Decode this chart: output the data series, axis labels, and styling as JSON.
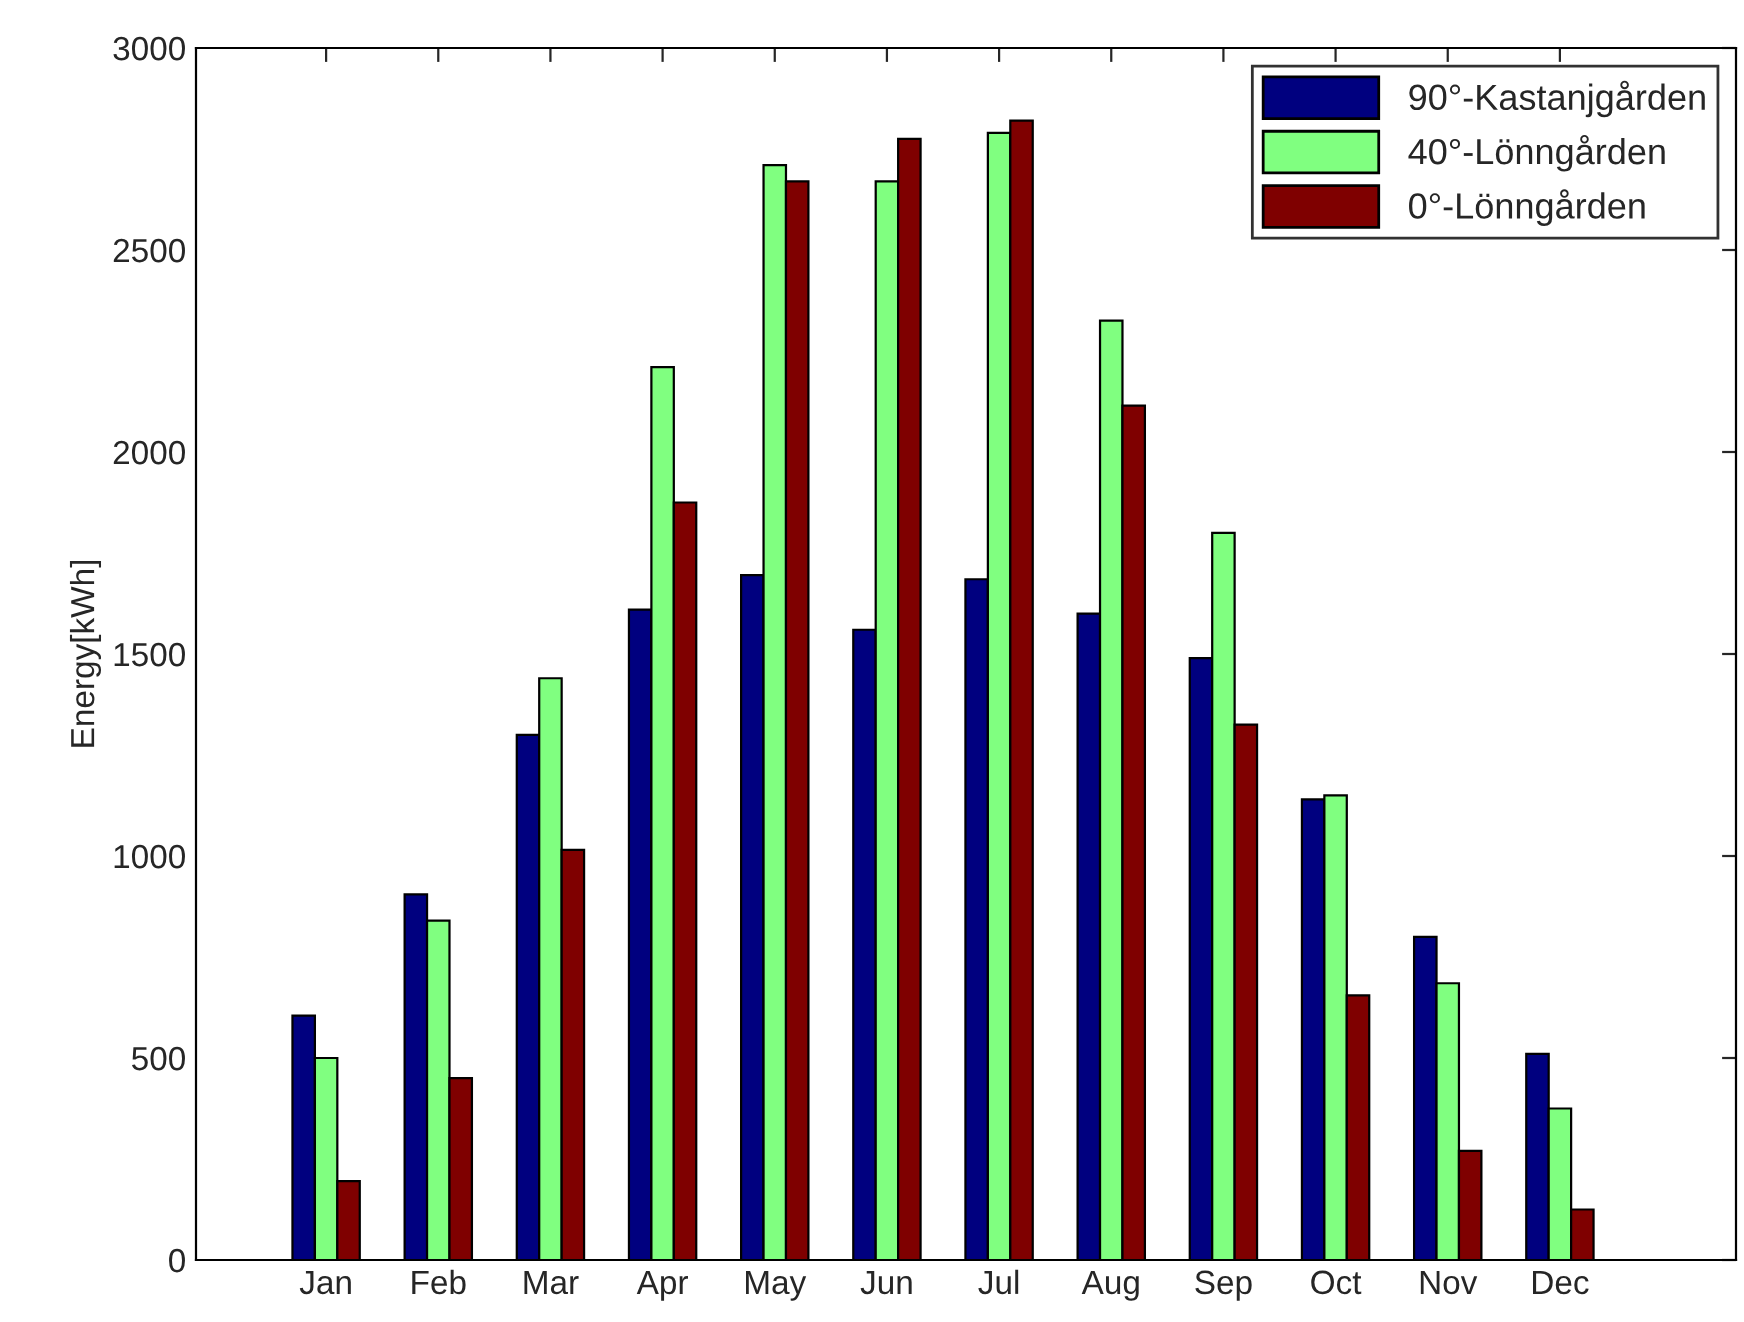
{
  "chart_data": {
    "type": "bar",
    "ylabel": "Energy[kWh]",
    "categories": [
      "Jan",
      "Feb",
      "Mar",
      "Apr",
      "May",
      "Jun",
      "Jul",
      "Aug",
      "Sep",
      "Oct",
      "Nov",
      "Dec"
    ],
    "series": [
      {
        "name": "90°-Kastanjgården",
        "color": "#00007f",
        "values": [
          605,
          905,
          1300,
          1610,
          1695,
          1560,
          1685,
          1600,
          1490,
          1140,
          800,
          510
        ]
      },
      {
        "name": "40°-Lönngården",
        "color": "#80ff80",
        "values": [
          500,
          840,
          1440,
          2210,
          2710,
          2670,
          2790,
          2325,
          1800,
          1150,
          685,
          375
        ]
      },
      {
        "name": "0°-Lönngården",
        "color": "#7f0000",
        "values": [
          195,
          450,
          1015,
          1875,
          2670,
          2775,
          2820,
          2115,
          1325,
          655,
          270,
          125
        ]
      }
    ],
    "ylim": [
      0,
      3000
    ],
    "yticks": [
      0,
      500,
      1000,
      1500,
      2000,
      2500,
      3000
    ],
    "legend": "top right",
    "grid": false
  }
}
